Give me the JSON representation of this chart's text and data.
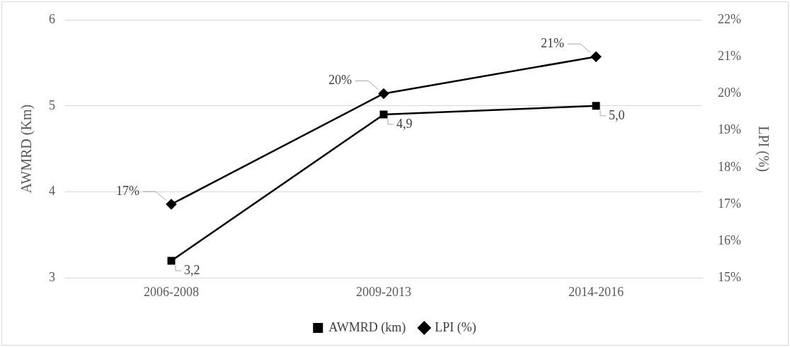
{
  "chart_data": {
    "type": "line",
    "xlabel": null,
    "ylabel": "AWMRD (Km)",
    "y2label": "LPI (%)",
    "categories": [
      "2006-2008",
      "2009-2013",
      "2014-2016"
    ],
    "series": [
      {
        "name": "AWMRD (km)",
        "color": "#000000",
        "marker": "square",
        "values": [
          3.2,
          4.9,
          5.0
        ],
        "value_labels": [
          "3,2",
          "4,9",
          "5,0"
        ]
      },
      {
        "name": "LPI (%)",
        "color": "#000000",
        "marker": "diamond",
        "axis": "y2",
        "values": [
          17,
          20,
          21
        ],
        "value_labels": [
          "17%",
          "20%",
          "21%"
        ]
      }
    ],
    "ylim": [
      3,
      6
    ],
    "yticks": [
      3,
      4,
      5,
      6
    ],
    "y2lim": [
      15,
      22
    ],
    "y2ticks": [
      {
        "value": 15,
        "label": "15%"
      },
      {
        "value": 16,
        "label": "16%"
      },
      {
        "value": 17,
        "label": "17%"
      },
      {
        "value": 18,
        "label": "18%"
      },
      {
        "value": 19,
        "label": "19%"
      },
      {
        "value": 20,
        "label": "20%"
      },
      {
        "value": 21,
        "label": "21%"
      },
      {
        "value": 22,
        "label": "22%"
      }
    ],
    "grid": "y",
    "legend": "bottom",
    "line_style": "solid"
  }
}
